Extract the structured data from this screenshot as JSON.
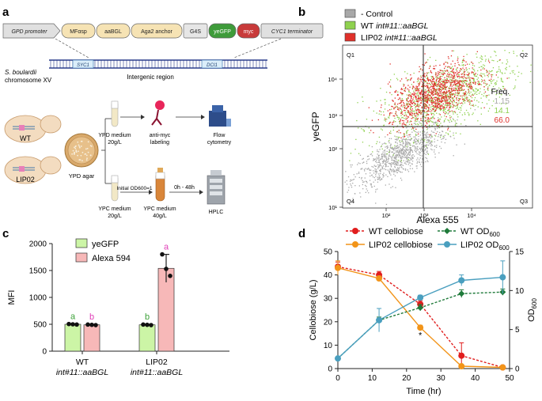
{
  "panels": {
    "a": {
      "label": "a",
      "construct": [
        {
          "name": "GPD promoter",
          "italic": true,
          "fill": "#e0e0e0",
          "kind": "promoter"
        },
        {
          "name": "MFαsp",
          "italic": false,
          "fill": "#f6e3b4",
          "kind": "box"
        },
        {
          "name": "aaBGL",
          "italic": false,
          "fill": "#f6e3b4",
          "kind": "box"
        },
        {
          "name": "Aga2 anchor",
          "italic": false,
          "fill": "#f6e3b4",
          "kind": "box"
        },
        {
          "name": "G4S",
          "italic": false,
          "fill": "#e6e6e6",
          "kind": "box"
        },
        {
          "name": "yeGFP",
          "italic": false,
          "fill": "#3e9b3a",
          "kind": "box"
        },
        {
          "name": "myc",
          "italic": false,
          "fill": "#c83a3a",
          "kind": "box"
        },
        {
          "name": "CYC1 terminator",
          "italic": true,
          "fill": "#e0e0e0",
          "kind": "box"
        }
      ],
      "chromosome_label": "S. boulardii",
      "chromosome_sub": "chromosome XV",
      "left_gene": "SYC1",
      "right_gene": "DCI1",
      "intergenic_label": "Intergenic region",
      "strain_wt": "WT",
      "strain_lip02": "LIP02",
      "agar_label": "YPD agar",
      "ypd_medium": "YPD medium",
      "ypd_conc": "20g/L",
      "antimyc_1": "anti-myc",
      "antimyc_2": "labeling",
      "flow_1": "Flow",
      "flow_2": "cytometry",
      "ypc_medium_1": "YPC medium",
      "ypc_conc_1": "20g/L",
      "initial_od": "Initial OD600=1",
      "ypc_medium_2": "YPC medium",
      "ypc_conc_2": "40g/L",
      "time_range": "0h - 48h",
      "hplc": "HPLC"
    },
    "b": {
      "label": "b",
      "legend": [
        {
          "name": "- Control",
          "color": "#a8a8a8",
          "prefix": "",
          "italic_part": ""
        },
        {
          "name": "WT int#11::aaBGL",
          "color": "#8fd14f",
          "prefix": "WT ",
          "italic_part": "int#11::aaBGL"
        },
        {
          "name": "LIP02 int#11::aaBGL",
          "color": "#e0302a",
          "prefix": "LIP02 ",
          "italic_part": "int#11::aaBGL"
        }
      ],
      "quadrants": [
        "Q1",
        "Q2",
        "Q3",
        "Q4"
      ],
      "xlabel": "Alexa 555",
      "ylabel": "yeGFP",
      "freq_label": "Freq.",
      "freq_values": [
        "1.15",
        "14.1",
        "66.0"
      ],
      "freq_colors": [
        "#a8a8a8",
        "#8fd14f",
        "#e0302a"
      ],
      "x_ticks": [
        "10²",
        "10³",
        "10⁴"
      ],
      "y_ticks": [
        "10¹",
        "10²",
        "10³",
        "10⁴"
      ]
    },
    "c": {
      "label": "c"
    },
    "d": {
      "label": "d"
    }
  },
  "chart_data": [
    {
      "type": "bar",
      "panel": "c",
      "ylabel": "MFI",
      "ylim": [
        0,
        2000
      ],
      "yticks": [
        0,
        500,
        1000,
        1500,
        2000
      ],
      "categories": [
        "WT",
        "LIP02"
      ],
      "category_sub": "int#11::aaBGL",
      "series": [
        {
          "name": "yeGFP",
          "color": "#ccf5a6",
          "values": [
            500,
            490
          ],
          "points": [
            [
              505,
              500,
              495
            ],
            [
              495,
              490,
              485
            ]
          ],
          "err": [
            10,
            10
          ],
          "letters": [
            "a",
            "b"
          ],
          "letter_color": "#3ea23a"
        },
        {
          "name": "Alexa 594",
          "color": "#f7b8b8",
          "values": [
            490,
            1540
          ],
          "points": [
            [
              495,
              490,
              485
            ],
            [
              1800,
              1530,
              1400
            ]
          ],
          "err": [
            10,
            260
          ],
          "letters": [
            "b",
            "a"
          ],
          "letter_color": "#e040b8"
        }
      ]
    },
    {
      "type": "line",
      "panel": "d",
      "xlabel": "Time (hr)",
      "ylabel_left": "Cellobiose (g/L)",
      "ylabel_right": "OD600",
      "xlim": [
        0,
        50
      ],
      "xticks": [
        0,
        10,
        20,
        30,
        40,
        50
      ],
      "ylim_left": [
        0,
        50
      ],
      "yticks_left": [
        0,
        10,
        20,
        30,
        40,
        50
      ],
      "ylim_right": [
        0,
        15
      ],
      "yticks_right": [
        0,
        5,
        10,
        15
      ],
      "annotation": "*",
      "series": [
        {
          "name": "WT cellobiose",
          "axis": "left",
          "color": "#e11d1d",
          "dashed": true,
          "marker": "circle",
          "x": [
            0,
            12,
            24,
            36,
            48
          ],
          "y": [
            43.5,
            40.0,
            27.5,
            5.5,
            0.5
          ],
          "err": [
            2.0,
            1.5,
            1.5,
            5.5,
            0.3
          ]
        },
        {
          "name": "LIP02 cellobiose",
          "axis": "left",
          "color": "#f29419",
          "dashed": false,
          "marker": "circle",
          "x": [
            0,
            12,
            24,
            36,
            48
          ],
          "y": [
            43.0,
            38.5,
            17.5,
            1.0,
            0.5
          ],
          "err": [
            3.0,
            1.0,
            1.0,
            0.5,
            0.3
          ]
        },
        {
          "name": "WT OD600",
          "axis": "right",
          "color": "#1f7a3a",
          "dashed": true,
          "marker": "diamond",
          "x": [
            0,
            12,
            24,
            36,
            48
          ],
          "y": [
            1.3,
            6.2,
            7.8,
            9.6,
            9.8
          ],
          "err": [
            0.1,
            0.4,
            0.4,
            0.5,
            0.4
          ]
        },
        {
          "name": "LIP02 OD600",
          "axis": "right",
          "color": "#4a9fbf",
          "dashed": false,
          "marker": "circle",
          "x": [
            0,
            12,
            24,
            36,
            48
          ],
          "y": [
            1.3,
            6.2,
            9.1,
            11.3,
            11.7
          ],
          "err": [
            0.1,
            1.5,
            0.3,
            0.7,
            2.1
          ]
        }
      ]
    }
  ]
}
